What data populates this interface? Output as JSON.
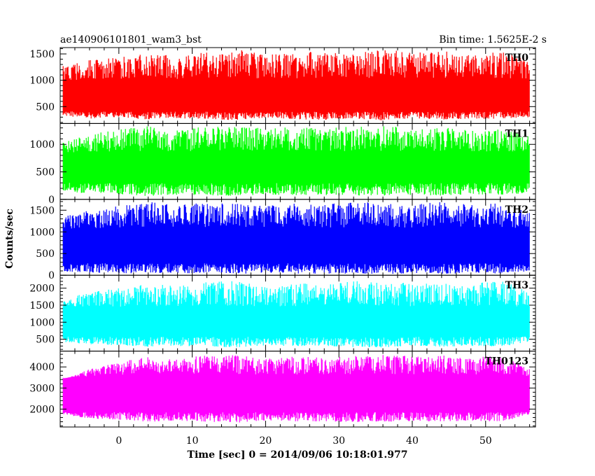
{
  "header": {
    "left_title": "ae140906101801_wam3_bst",
    "right_title": "Bin time: 1.5625E-2 s"
  },
  "chart_data": {
    "type": "line",
    "xlabel": "Time [sec] 0 = 2014/09/06 10:18:01.977",
    "ylabel": "Counts/sec",
    "xlim": [
      -8.0,
      56.8
    ],
    "xticks": [
      0,
      10,
      20,
      30,
      40,
      50
    ],
    "xtick_labels": [
      "0",
      "10",
      "20",
      "30",
      "40",
      "50"
    ],
    "data_x_range": [
      -7.6,
      56.0
    ],
    "panels": [
      {
        "name": "TH0",
        "color": "#ff0000",
        "ylim": [
          180,
          1620
        ],
        "yticks": [
          500,
          1000,
          1500
        ],
        "ytick_labels": [
          "500",
          "1000",
          "1500"
        ],
        "envelope": {
          "low_min": 200,
          "low_max": 420,
          "high_min": 950,
          "high_max": 1600
        },
        "segments": [
          {
            "x": -7.6,
            "min": 330,
            "max": 1290
          },
          {
            "x": -4,
            "min": 270,
            "max": 1380
          },
          {
            "x": 0,
            "min": 300,
            "max": 1450
          },
          {
            "x": 4,
            "min": 250,
            "max": 1520
          },
          {
            "x": 8,
            "min": 280,
            "max": 1460
          },
          {
            "x": 12,
            "min": 260,
            "max": 1550
          },
          {
            "x": 16,
            "min": 240,
            "max": 1600
          },
          {
            "x": 20,
            "min": 290,
            "max": 1480
          },
          {
            "x": 24,
            "min": 260,
            "max": 1520
          },
          {
            "x": 28,
            "min": 250,
            "max": 1560
          },
          {
            "x": 32,
            "min": 270,
            "max": 1500
          },
          {
            "x": 36,
            "min": 240,
            "max": 1600
          },
          {
            "x": 40,
            "min": 280,
            "max": 1520
          },
          {
            "x": 44,
            "min": 250,
            "max": 1560
          },
          {
            "x": 48,
            "min": 270,
            "max": 1480
          },
          {
            "x": 52,
            "min": 260,
            "max": 1540
          },
          {
            "x": 56,
            "min": 300,
            "max": 1400
          }
        ]
      },
      {
        "name": "TH1",
        "color": "#00ff00",
        "ylim": [
          0,
          1380
        ],
        "yticks": [
          0,
          500,
          1000
        ],
        "ytick_labels": [
          "0",
          "500",
          "1000"
        ],
        "envelope": {
          "low_min": 20,
          "low_max": 320,
          "high_min": 800,
          "high_max": 1370
        },
        "segments": [
          {
            "x": -7.6,
            "min": 150,
            "max": 1040
          },
          {
            "x": -4,
            "min": 100,
            "max": 1180
          },
          {
            "x": 0,
            "min": 90,
            "max": 1280
          },
          {
            "x": 4,
            "min": 60,
            "max": 1330
          },
          {
            "x": 8,
            "min": 80,
            "max": 1270
          },
          {
            "x": 12,
            "min": 70,
            "max": 1340
          },
          {
            "x": 16,
            "min": 60,
            "max": 1330
          },
          {
            "x": 20,
            "min": 90,
            "max": 1290
          },
          {
            "x": 24,
            "min": 70,
            "max": 1320
          },
          {
            "x": 28,
            "min": 80,
            "max": 1300
          },
          {
            "x": 32,
            "min": 60,
            "max": 1330
          },
          {
            "x": 36,
            "min": 70,
            "max": 1340
          },
          {
            "x": 40,
            "min": 80,
            "max": 1290
          },
          {
            "x": 44,
            "min": 70,
            "max": 1310
          },
          {
            "x": 48,
            "min": 90,
            "max": 1270
          },
          {
            "x": 52,
            "min": 80,
            "max": 1300
          },
          {
            "x": 56,
            "min": 120,
            "max": 1150
          }
        ]
      },
      {
        "name": "TH2",
        "color": "#0000ff",
        "ylim": [
          0,
          1750
        ],
        "yticks": [
          0,
          500,
          1000,
          1500
        ],
        "ytick_labels": [
          "0",
          "500",
          "1000",
          "1500"
        ],
        "envelope": {
          "low_min": 10,
          "low_max": 300,
          "high_min": 1000,
          "high_max": 1740
        },
        "segments": [
          {
            "x": -7.6,
            "min": 80,
            "max": 1350
          },
          {
            "x": -4,
            "min": 60,
            "max": 1500
          },
          {
            "x": 0,
            "min": 50,
            "max": 1600
          },
          {
            "x": 4,
            "min": 30,
            "max": 1700
          },
          {
            "x": 8,
            "min": 50,
            "max": 1620
          },
          {
            "x": 12,
            "min": 40,
            "max": 1680
          },
          {
            "x": 16,
            "min": 30,
            "max": 1650
          },
          {
            "x": 20,
            "min": 50,
            "max": 1600
          },
          {
            "x": 24,
            "min": 40,
            "max": 1660
          },
          {
            "x": 28,
            "min": 30,
            "max": 1640
          },
          {
            "x": 32,
            "min": 40,
            "max": 1700
          },
          {
            "x": 36,
            "min": 30,
            "max": 1680
          },
          {
            "x": 40,
            "min": 40,
            "max": 1650
          },
          {
            "x": 44,
            "min": 30,
            "max": 1700
          },
          {
            "x": 48,
            "min": 50,
            "max": 1620
          },
          {
            "x": 52,
            "min": 40,
            "max": 1660
          },
          {
            "x": 56,
            "min": 90,
            "max": 1450
          }
        ]
      },
      {
        "name": "TH3",
        "color": "#00ffff",
        "ylim": [
          150,
          2380
        ],
        "yticks": [
          500,
          1000,
          1500,
          2000
        ],
        "ytick_labels": [
          "500",
          "1000",
          "1500",
          "2000"
        ],
        "envelope": {
          "low_min": 180,
          "low_max": 600,
          "high_min": 1350,
          "high_max": 2350
        },
        "segments": [
          {
            "x": -7.6,
            "min": 420,
            "max": 1650
          },
          {
            "x": -4,
            "min": 350,
            "max": 1900
          },
          {
            "x": 0,
            "min": 320,
            "max": 2000
          },
          {
            "x": 4,
            "min": 280,
            "max": 2150
          },
          {
            "x": 8,
            "min": 300,
            "max": 2080
          },
          {
            "x": 12,
            "min": 290,
            "max": 2180
          },
          {
            "x": 16,
            "min": 260,
            "max": 2220
          },
          {
            "x": 20,
            "min": 320,
            "max": 2050
          },
          {
            "x": 24,
            "min": 290,
            "max": 2150
          },
          {
            "x": 28,
            "min": 300,
            "max": 2100
          },
          {
            "x": 32,
            "min": 270,
            "max": 2200
          },
          {
            "x": 36,
            "min": 260,
            "max": 2250
          },
          {
            "x": 40,
            "min": 300,
            "max": 2120
          },
          {
            "x": 44,
            "min": 280,
            "max": 2180
          },
          {
            "x": 48,
            "min": 300,
            "max": 2100
          },
          {
            "x": 52,
            "min": 280,
            "max": 2300
          },
          {
            "x": 56,
            "min": 420,
            "max": 1850
          }
        ]
      },
      {
        "name": "TH0123",
        "color": "#ff00ff",
        "ylim": [
          1150,
          4750
        ],
        "yticks": [
          2000,
          3000,
          4000
        ],
        "ytick_labels": [
          "2000",
          "3000",
          "4000"
        ],
        "envelope": {
          "low_min": 1180,
          "low_max": 1900,
          "high_min": 3500,
          "high_max": 4720
        },
        "segments": [
          {
            "x": -7.6,
            "min": 1750,
            "max": 3400
          },
          {
            "x": -4,
            "min": 1550,
            "max": 3900
          },
          {
            "x": 0,
            "min": 1500,
            "max": 4250
          },
          {
            "x": 4,
            "min": 1400,
            "max": 4500
          },
          {
            "x": 8,
            "min": 1450,
            "max": 4350
          },
          {
            "x": 12,
            "min": 1400,
            "max": 4600
          },
          {
            "x": 16,
            "min": 1350,
            "max": 4550
          },
          {
            "x": 20,
            "min": 1450,
            "max": 4400
          },
          {
            "x": 24,
            "min": 1400,
            "max": 4500
          },
          {
            "x": 28,
            "min": 1420,
            "max": 4450
          },
          {
            "x": 32,
            "min": 1380,
            "max": 4550
          },
          {
            "x": 36,
            "min": 1400,
            "max": 4600
          },
          {
            "x": 40,
            "min": 1420,
            "max": 4500
          },
          {
            "x": 44,
            "min": 1400,
            "max": 4550
          },
          {
            "x": 48,
            "min": 1450,
            "max": 4400
          },
          {
            "x": 52,
            "min": 1400,
            "max": 4600
          },
          {
            "x": 56,
            "min": 1700,
            "max": 3900
          }
        ]
      }
    ]
  }
}
